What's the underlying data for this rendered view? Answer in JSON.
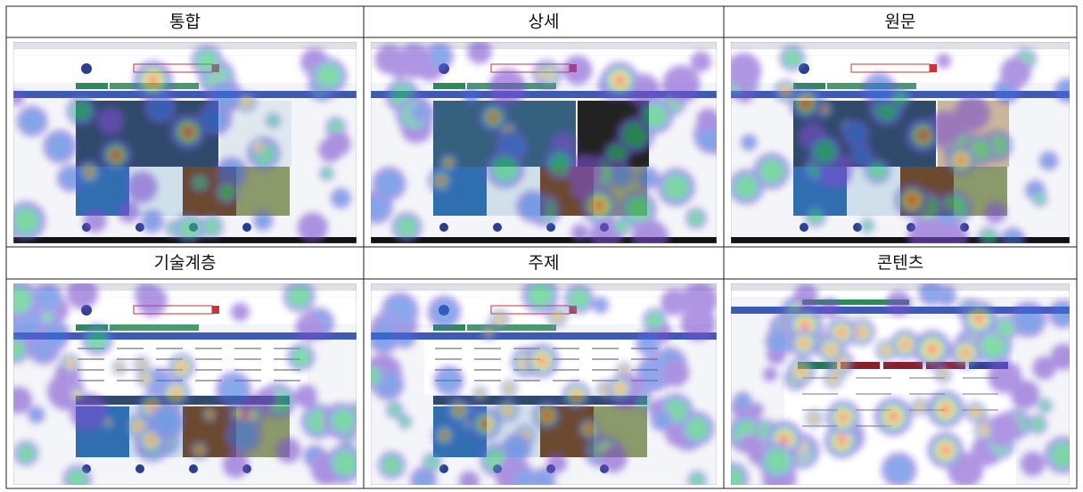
{
  "table": {
    "headers": [
      [
        "통합",
        "상세",
        "원문"
      ],
      [
        "기술계층",
        "주제",
        "콘텐츠"
      ]
    ]
  }
}
